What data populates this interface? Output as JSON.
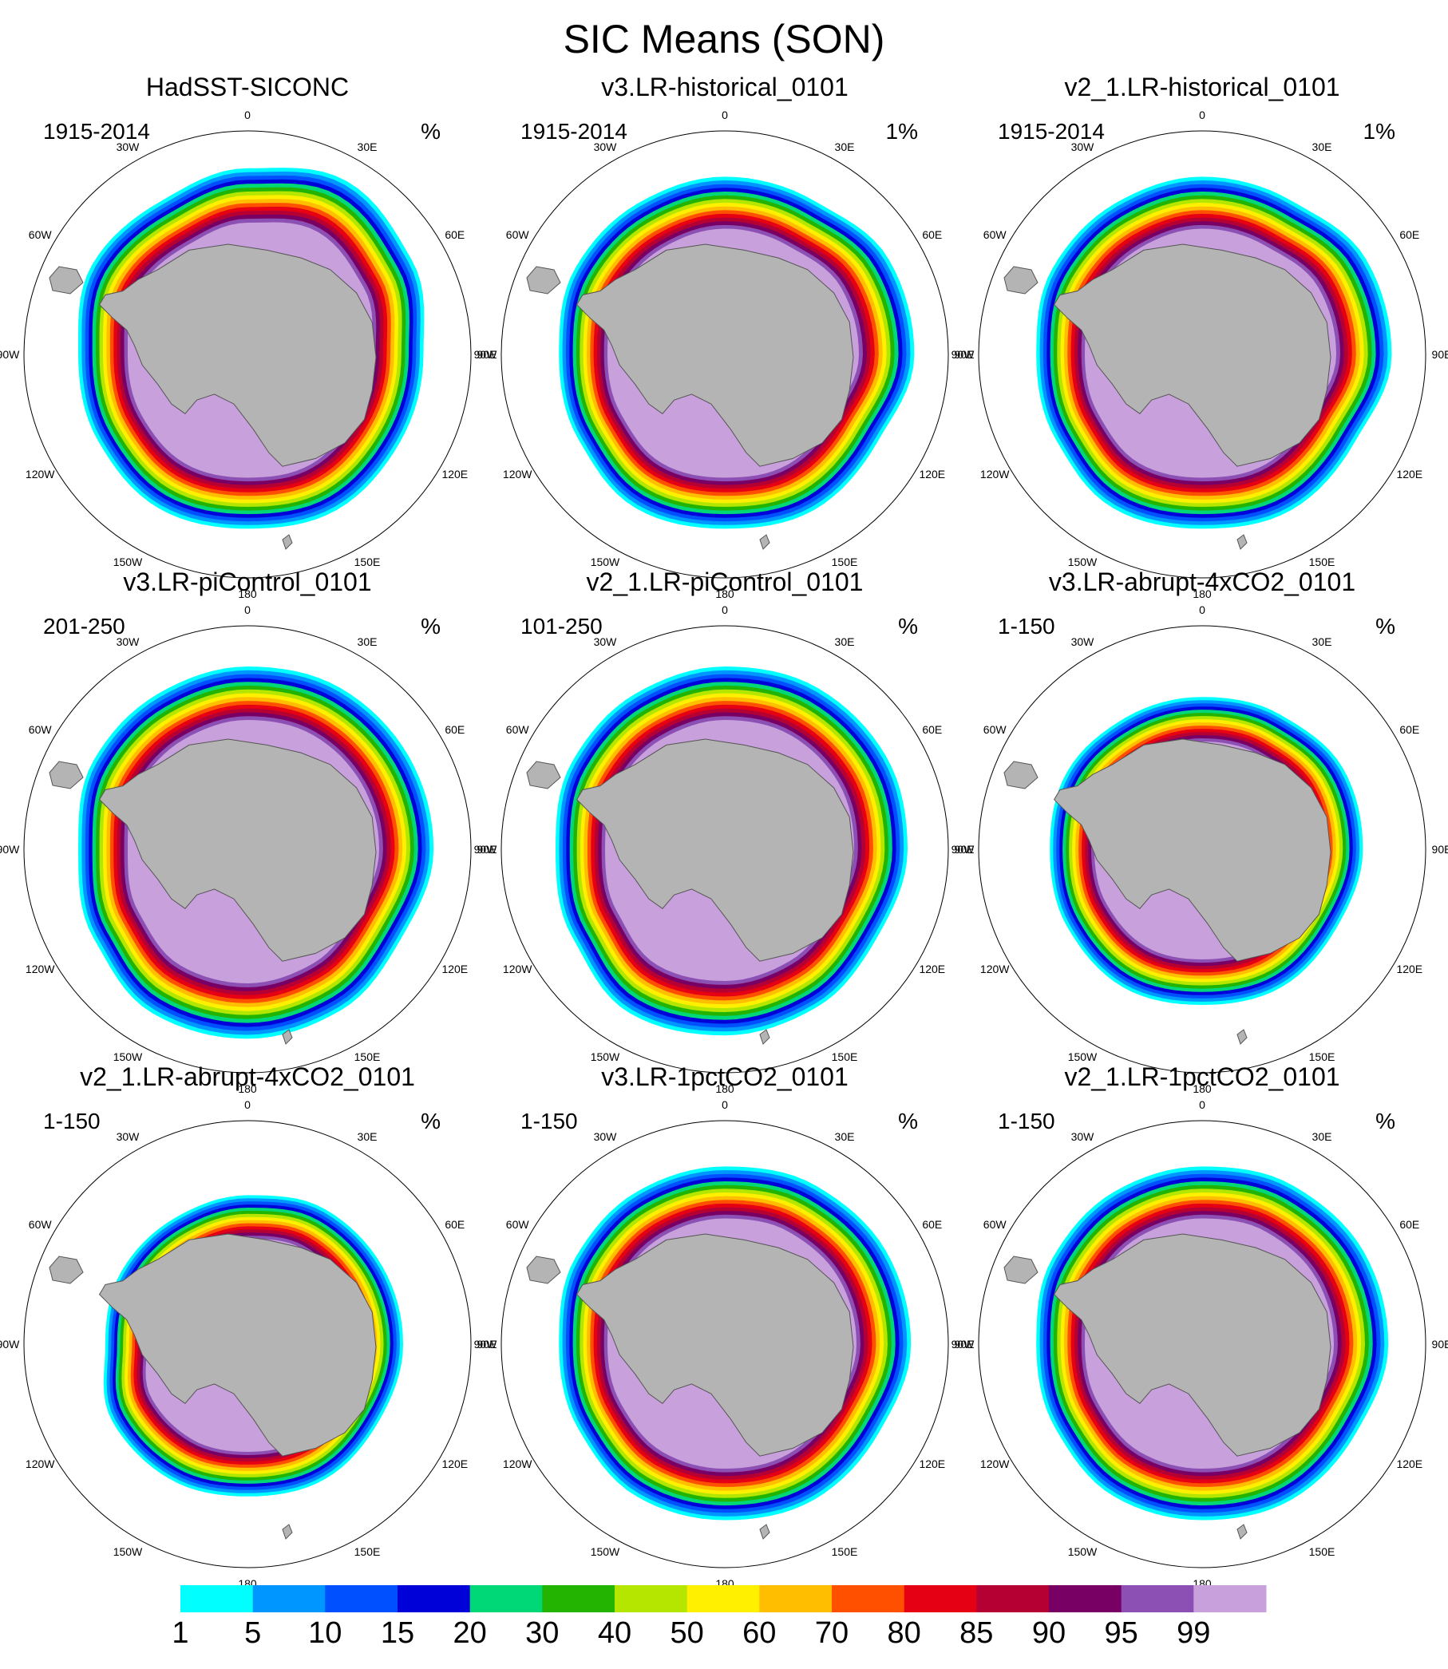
{
  "chart_data": {
    "type": "polar-filled-contour-grid",
    "title": "SIC Means (SON)",
    "units_symbol": "%",
    "longitude_labels": [
      "0",
      "30E",
      "60E",
      "90E",
      "120E",
      "150E",
      "180",
      "150W",
      "120W",
      "90W",
      "60W",
      "30W"
    ],
    "colorbar": {
      "levels": [
        "1",
        "5",
        "10",
        "15",
        "20",
        "30",
        "40",
        "50",
        "60",
        "70",
        "80",
        "85",
        "90",
        "95",
        "99"
      ],
      "colors": [
        "#00ffff",
        "#0096ff",
        "#0050ff",
        "#0000d8",
        "#00d878",
        "#22b400",
        "#b4e600",
        "#fff000",
        "#ffbe00",
        "#ff5000",
        "#e60014",
        "#b40032",
        "#780064",
        "#8c50b4",
        "#c8a0dc"
      ]
    },
    "panels": [
      {
        "title": "HadSST-SICONC",
        "period": "1915-2014",
        "units": "%",
        "ice_edge_scale": [
          1.1,
          1.18,
          1.12,
          1.04,
          1.04,
          1.06,
          1.03,
          1.05,
          1.02,
          1.0,
          1.06,
          1.04
        ]
      },
      {
        "title": "v3.LR-historical_0101",
        "period": "1915-2014",
        "units": "1%",
        "ice_edge_scale": [
          1.05,
          1.05,
          1.12,
          1.12,
          1.04,
          1.06,
          1.03,
          1.05,
          1.0,
          0.98,
          1.02,
          1.03
        ]
      },
      {
        "title": "v2_1.LR-historical_0101",
        "period": "1915-2014",
        "units": "1%",
        "ice_edge_scale": [
          1.05,
          1.05,
          1.12,
          1.12,
          1.04,
          1.06,
          1.03,
          1.05,
          1.0,
          0.98,
          1.02,
          1.03
        ]
      },
      {
        "title": "v3.LR-piControl_0101",
        "period": "201-250",
        "units": "%",
        "ice_edge_scale": [
          1.08,
          1.1,
          1.1,
          1.1,
          1.05,
          1.1,
          1.12,
          1.12,
          1.05,
          1.0,
          1.05,
          1.06
        ]
      },
      {
        "title": "v2_1.LR-piControl_0101",
        "period": "101-250",
        "units": "%",
        "ice_edge_scale": [
          1.08,
          1.1,
          1.1,
          1.08,
          1.04,
          1.08,
          1.1,
          1.12,
          1.04,
          1.0,
          1.04,
          1.06
        ]
      },
      {
        "title": "v3.LR-abrupt-4xCO2_0101",
        "period": "1-150",
        "units": "%",
        "ice_edge_scale": [
          0.9,
          0.92,
          0.96,
          0.95,
          0.92,
          0.94,
          0.92,
          0.94,
          0.92,
          0.9,
          0.92,
          0.9
        ]
      },
      {
        "title": "v2_1.LR-abrupt-4xCO2_0101",
        "period": "1-150",
        "units": "%",
        "ice_edge_scale": [
          0.88,
          0.92,
          0.92,
          0.92,
          0.9,
          0.92,
          0.9,
          0.92,
          0.92,
          0.84,
          0.86,
          0.86
        ]
      },
      {
        "title": "v3.LR-1pctCO2_0101",
        "period": "1-150",
        "units": "%",
        "ice_edge_scale": [
          1.05,
          1.08,
          1.1,
          1.1,
          1.05,
          1.06,
          1.04,
          1.04,
          1.0,
          0.98,
          1.02,
          1.04
        ]
      },
      {
        "title": "v2_1.LR-1pctCO2_0101",
        "period": "1-150",
        "units": "%",
        "ice_edge_scale": [
          1.05,
          1.08,
          1.1,
          1.1,
          1.05,
          1.06,
          1.04,
          1.04,
          1.0,
          0.98,
          1.02,
          1.04
        ]
      }
    ]
  }
}
